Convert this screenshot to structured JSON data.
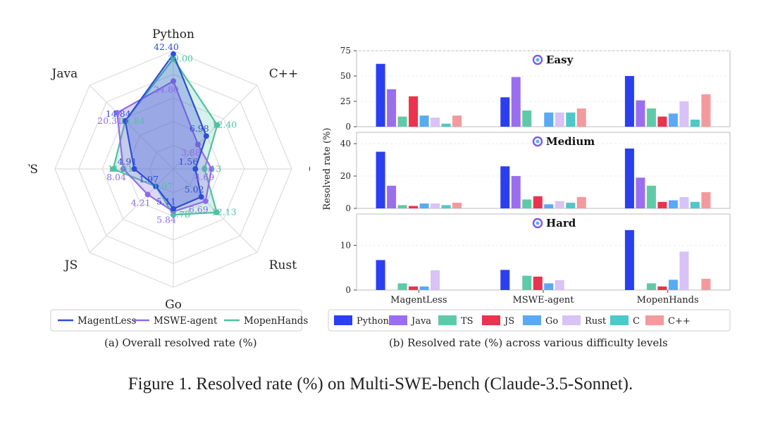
{
  "figure_caption": "Figure 1. Resolved rate (%) on Multi-SWE-bench (Claude-3.5-Sonnet).",
  "colors": {
    "MagentLess": "#2f4ed6",
    "MSWE-agent": "#8e6ce8",
    "MopenHands": "#4fc1a0",
    "Python": "#2b3ff0",
    "Java": "#9b6ef0",
    "TS": "#5fcaa8",
    "JS": "#e8344e",
    "Go": "#5aaaf2",
    "Rust": "#d8c2f6",
    "C": "#4ec8c8",
    "C++": "#f29a9e"
  },
  "chart_data": [
    {
      "type": "radar",
      "caption": "(a) Overall resolved rate (%)",
      "axes": [
        "Python",
        "C++",
        "C",
        "Rust",
        "Go",
        "JS",
        "TS",
        "Java"
      ],
      "rmax": 45,
      "legend_position": "bottom",
      "series": [
        {
          "name": "MagentLess",
          "values": [
            42.4,
            6.98,
            1.56,
            5.02,
            5.11,
            1.97,
            4.91,
            14.84
          ],
          "labels": [
            "42.40",
            "6.98",
            "1.56",
            "5.02",
            "5.11",
            "1.97",
            "4.91",
            "14.84"
          ]
        },
        {
          "name": "MSWE-agent",
          "values": [
            24.8,
            3.88,
            4.69,
            6.69,
            5.84,
            4.21,
            8.04,
            20.31
          ],
          "labels": [
            "24.80",
            "3.88",
            "4.69",
            "6.69",
            "5.84",
            "4.21",
            "8.04",
            "20.31"
          ]
        },
        {
          "name": "MopenHands",
          "values": [
            39.0,
            12.4,
            3.13,
            12.13,
            6.78,
            1.97,
            11.61,
            14.84
          ],
          "labels": [
            "39.00",
            "12.40",
            "3.13",
            "12.13",
            "6.78",
            "1.97",
            "11.61",
            "14.84"
          ]
        }
      ]
    },
    {
      "type": "bar",
      "caption": "(b) Resolved rate (%) across various difficulty levels",
      "ylabel": "Resolved rate (%)",
      "categories": [
        "MagentLess",
        "MSWE-agent",
        "MopenHands"
      ],
      "series_names": [
        "Python",
        "Java",
        "TS",
        "JS",
        "Go",
        "Rust",
        "C",
        "C++"
      ],
      "legend_position": "bottom",
      "panels": [
        {
          "title": "Easy",
          "ylim": [
            0,
            75
          ],
          "yticks": [
            0,
            25,
            50,
            75
          ],
          "values": [
            [
              62,
              37,
              10,
              30,
              11,
              9,
              3,
              11
            ],
            [
              29,
              49,
              16,
              0,
              14,
              14,
              14,
              18
            ],
            [
              50,
              26,
              18,
              10,
              13,
              25,
              7,
              32
            ]
          ]
        },
        {
          "title": "Medium",
          "ylim": [
            0,
            47
          ],
          "yticks": [
            0,
            20,
            40
          ],
          "values": [
            [
              35,
              14,
              2,
              1.5,
              3,
              3,
              2,
              3.5
            ],
            [
              26,
              20,
              5.5,
              7.5,
              2.5,
              4.5,
              3.5,
              7
            ],
            [
              37,
              19,
              14,
              4,
              5,
              7,
              4,
              10
            ]
          ]
        },
        {
          "title": "Hard",
          "ylim": [
            0,
            17
          ],
          "yticks": [
            0,
            10
          ],
          "values": [
            [
              6.7,
              0,
              1.5,
              0.8,
              0.8,
              4.4,
              0,
              0
            ],
            [
              4.5,
              0,
              3.2,
              3,
              1.5,
              2.2,
              0,
              0
            ],
            [
              13.4,
              0,
              1.5,
              0.8,
              2.3,
              8.6,
              0,
              2.5
            ]
          ]
        }
      ]
    }
  ]
}
